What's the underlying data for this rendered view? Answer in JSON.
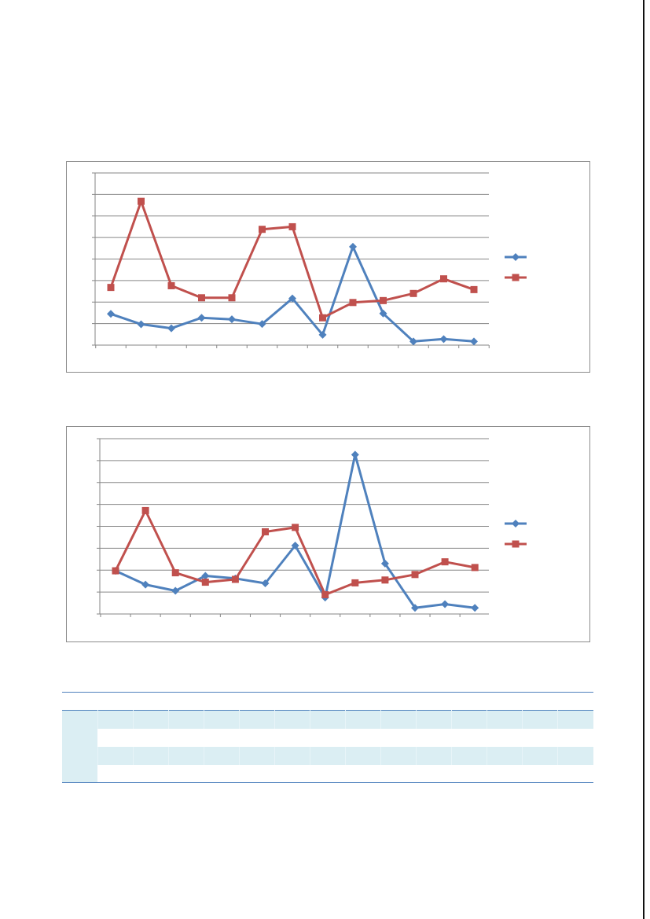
{
  "colors": {
    "series_blue": "#4f81bd",
    "series_red": "#c0504d",
    "gridline": "#868686",
    "table_rule": "#4f81bd",
    "table_band": "#dbeef3"
  },
  "chart_data": [
    {
      "type": "line",
      "title": "",
      "xlabel": "",
      "ylabel": "",
      "ylim": [
        0,
        8
      ],
      "grid": true,
      "legend": "right",
      "x": [
        1,
        2,
        3,
        4,
        5,
        6,
        7,
        8,
        9,
        10,
        11,
        12,
        13
      ],
      "series": [
        {
          "marker": "diamond",
          "color": "#4f81bd",
          "values": [
            1.45,
            0.97,
            0.78,
            1.27,
            1.2,
            0.98,
            2.17,
            0.48,
            4.57,
            1.47,
            0.17,
            0.28,
            0.17
          ]
        },
        {
          "marker": "square",
          "color": "#c0504d",
          "values": [
            2.68,
            6.68,
            2.76,
            2.2,
            2.2,
            5.38,
            5.5,
            1.27,
            1.98,
            2.07,
            2.4,
            3.08,
            2.58
          ]
        }
      ]
    },
    {
      "type": "line",
      "title": "",
      "xlabel": "",
      "ylabel": "",
      "ylim": [
        0,
        8
      ],
      "grid": true,
      "legend": "right",
      "x": [
        1,
        2,
        3,
        4,
        5,
        6,
        7,
        8,
        9,
        10,
        11,
        12,
        13
      ],
      "series": [
        {
          "marker": "diamond",
          "color": "#4f81bd",
          "values": [
            1.97,
            1.34,
            1.06,
            1.74,
            1.62,
            1.4,
            3.12,
            0.75,
            7.27,
            2.3,
            0.28,
            0.45,
            0.28
          ]
        },
        {
          "marker": "square",
          "color": "#c0504d",
          "values": [
            1.97,
            4.72,
            1.88,
            1.45,
            1.58,
            3.75,
            3.95,
            0.88,
            1.42,
            1.55,
            1.8,
            2.38,
            2.12
          ]
        }
      ]
    }
  ]
}
